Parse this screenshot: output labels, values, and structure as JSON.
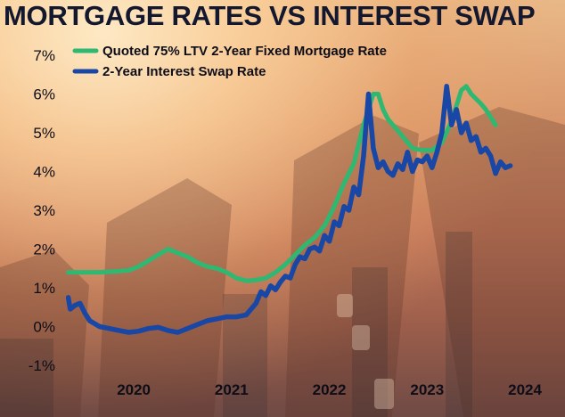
{
  "chart_data": {
    "type": "line",
    "title": "MORTGAGE RATES VS INTEREST SWAP",
    "xlabel": "",
    "ylabel": "",
    "xlim": [
      2019.42,
      2024.25
    ],
    "ylim": [
      -1,
      7
    ],
    "y_ticks": [
      "7%",
      "6%",
      "5%",
      "4%",
      "3%",
      "2%",
      "1%",
      "0%",
      "-1%"
    ],
    "x_ticks": [
      "2020",
      "2021",
      "2022",
      "2023",
      "2024"
    ],
    "legend_position": "top-left",
    "grid": false,
    "series": [
      {
        "name": "Quoted 75% LTV 2-Year Fixed Mortgage Rate",
        "color": "#2eb872",
        "x": [
          2019.48,
          2019.6,
          2019.8,
          2019.95,
          2020.1,
          2020.2,
          2020.3,
          2020.4,
          2020.5,
          2020.6,
          2020.7,
          2020.8,
          2020.9,
          2021.0,
          2021.1,
          2021.2,
          2021.3,
          2021.4,
          2021.5,
          2021.6,
          2021.7,
          2021.8,
          2021.9,
          2022.0,
          2022.1,
          2022.2,
          2022.3,
          2022.4,
          2022.5,
          2022.6,
          2022.65,
          2022.7,
          2022.75,
          2022.8,
          2022.9,
          2023.0,
          2023.1,
          2023.2,
          2023.3,
          2023.4,
          2023.5,
          2023.55,
          2023.6,
          2023.7,
          2023.75,
          2023.8,
          2023.85
        ],
        "values": [
          1.4,
          1.4,
          1.4,
          1.42,
          1.45,
          1.55,
          1.7,
          1.85,
          2.0,
          1.9,
          1.8,
          1.65,
          1.55,
          1.5,
          1.4,
          1.25,
          1.18,
          1.2,
          1.25,
          1.4,
          1.6,
          1.85,
          2.1,
          2.3,
          2.6,
          3.1,
          3.7,
          4.2,
          5.2,
          6.0,
          6.0,
          5.6,
          5.35,
          5.2,
          4.9,
          4.6,
          4.55,
          4.55,
          4.75,
          5.3,
          6.1,
          6.2,
          6.0,
          5.75,
          5.6,
          5.4,
          5.2
        ]
      },
      {
        "name": "2-Year Interest Swap Rate",
        "color": "#1847a6",
        "x": [
          2019.48,
          2019.5,
          2019.55,
          2019.6,
          2019.65,
          2019.7,
          2019.8,
          2019.9,
          2020.0,
          2020.1,
          2020.2,
          2020.3,
          2020.4,
          2020.5,
          2020.6,
          2020.7,
          2020.8,
          2020.9,
          2021.0,
          2021.1,
          2021.2,
          2021.3,
          2021.4,
          2021.45,
          2021.5,
          2021.55,
          2021.6,
          2021.65,
          2021.7,
          2021.75,
          2021.8,
          2021.85,
          2021.9,
          2021.95,
          2022.0,
          2022.05,
          2022.1,
          2022.15,
          2022.2,
          2022.25,
          2022.3,
          2022.35,
          2022.4,
          2022.45,
          2022.5,
          2022.55,
          2022.6,
          2022.65,
          2022.7,
          2022.75,
          2022.8,
          2022.85,
          2022.9,
          2022.95,
          2023.0,
          2023.05,
          2023.1,
          2023.15,
          2023.2,
          2023.25,
          2023.3,
          2023.35,
          2023.4,
          2023.45,
          2023.5,
          2023.55,
          2023.6,
          2023.65,
          2023.7,
          2023.75,
          2023.8,
          2023.85,
          2023.9,
          2023.95,
          2024.0
        ],
        "values": [
          0.75,
          0.45,
          0.55,
          0.6,
          0.35,
          0.15,
          0.0,
          -0.05,
          -0.1,
          -0.15,
          -0.12,
          -0.05,
          -0.02,
          -0.1,
          -0.15,
          -0.05,
          0.05,
          0.15,
          0.2,
          0.25,
          0.25,
          0.3,
          0.6,
          0.9,
          0.8,
          1.05,
          0.95,
          1.15,
          1.3,
          1.25,
          1.6,
          1.8,
          1.75,
          2.0,
          2.05,
          1.95,
          2.35,
          2.2,
          2.7,
          2.6,
          3.1,
          3.0,
          3.6,
          3.4,
          4.4,
          6.0,
          4.6,
          4.1,
          4.25,
          4.0,
          3.9,
          4.2,
          4.05,
          4.5,
          4.0,
          4.3,
          4.25,
          4.4,
          4.1,
          4.5,
          5.0,
          6.2,
          5.2,
          5.6,
          5.0,
          5.25,
          4.8,
          4.9,
          4.5,
          4.6,
          4.4,
          3.95,
          4.25,
          4.1,
          4.15
        ]
      }
    ]
  }
}
